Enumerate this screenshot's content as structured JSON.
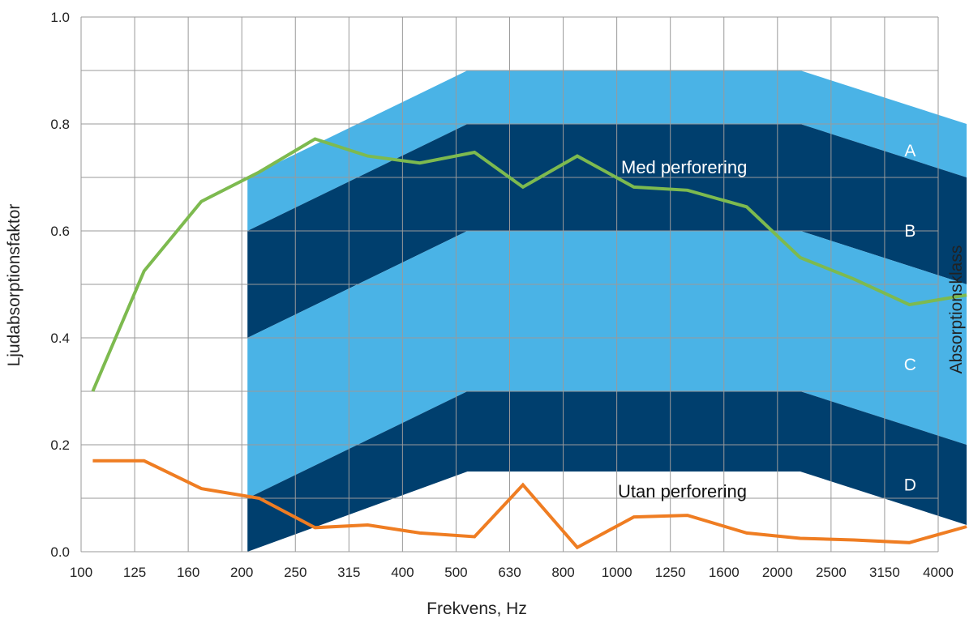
{
  "chart_data": {
    "type": "line",
    "title": "",
    "xlabel": "Frekvens, Hz",
    "ylabel": "Ljudabsorptionsfaktor",
    "ylabel_right": "Absorptionsklass",
    "x_ticks": [
      "100",
      "125",
      "160",
      "200",
      "250",
      "315",
      "400",
      "500",
      "630",
      "800",
      "1000",
      "1250",
      "1600",
      "2000",
      "2500",
      "3150",
      "4000"
    ],
    "y_ticks": [
      "0.0",
      "0.2",
      "0.4",
      "0.6",
      "0.8",
      "1.0"
    ],
    "ylim": [
      0,
      1.0
    ],
    "x_scale": "log",
    "grid": true,
    "colors": {
      "band_light": "#4ab3e6",
      "band_dark": "#003f6e",
      "med": "#7dba4f",
      "utan": "#ef7d22",
      "grid": "#9a9a9a"
    },
    "class_bands": {
      "breakpoints_hz": [
        200,
        500,
        2000,
        4000
      ],
      "boundaries": [
        [
          0.7,
          0.9,
          0.9,
          0.8
        ],
        [
          0.6,
          0.8,
          0.8,
          0.7
        ],
        [
          0.4,
          0.6,
          0.6,
          0.5
        ],
        [
          0.1,
          0.3,
          0.3,
          0.2
        ],
        [
          0.0,
          0.15,
          0.15,
          0.05
        ]
      ],
      "labels": [
        "A",
        "B",
        "C",
        "D"
      ]
    },
    "series": [
      {
        "name": "Med perforering",
        "x": [
          105,
          130,
          165,
          210,
          265,
          330,
          410,
          515,
          630,
          790,
          1000,
          1250,
          1600,
          2000,
          2500,
          3150,
          4000
        ],
        "y": [
          0.3,
          0.525,
          0.655,
          0.71,
          0.772,
          0.74,
          0.727,
          0.747,
          0.682,
          0.74,
          0.682,
          0.676,
          0.645,
          0.55,
          0.51,
          0.462,
          0.48
        ]
      },
      {
        "name": "Utan perforering",
        "x": [
          105,
          130,
          165,
          210,
          265,
          330,
          410,
          515,
          630,
          790,
          1000,
          1250,
          1600,
          2000,
          2500,
          3150,
          4000
        ],
        "y": [
          0.17,
          0.17,
          0.118,
          0.1,
          0.045,
          0.05,
          0.035,
          0.028,
          0.125,
          0.008,
          0.065,
          0.068,
          0.035,
          0.025,
          0.022,
          0.017,
          0.047
        ]
      }
    ]
  }
}
